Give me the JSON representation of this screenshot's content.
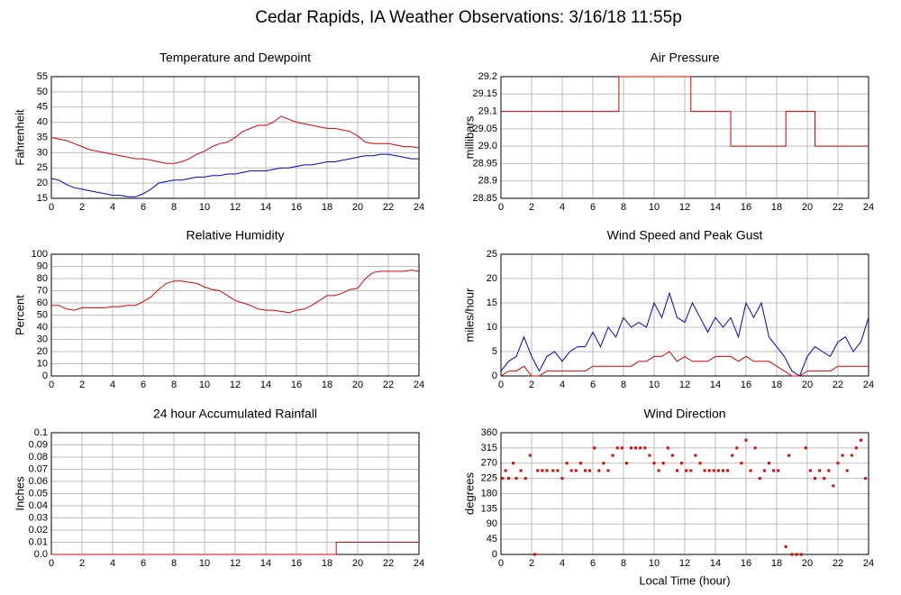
{
  "title": "Cedar Rapids, IA Weather Observations: 3/16/18 11:55p",
  "chart_data": [
    {
      "type": "line",
      "title": "Temperature and Dewpoint",
      "ylabel": "Fahrenheit",
      "x": [
        0,
        0.5,
        1,
        1.5,
        2,
        2.5,
        3,
        3.5,
        4,
        4.5,
        5,
        5.5,
        6,
        6.5,
        7,
        7.5,
        8,
        8.5,
        9,
        9.5,
        10,
        10.5,
        11,
        11.5,
        12,
        12.5,
        13,
        13.5,
        14,
        14.5,
        15,
        15.5,
        16,
        16.5,
        17,
        17.5,
        18,
        18.5,
        19,
        19.5,
        20,
        20.5,
        21,
        21.5,
        22,
        22.5,
        23,
        23.5,
        24
      ],
      "series": [
        {
          "color": "#e00000",
          "values": [
            35,
            34.5,
            34,
            33,
            32,
            31,
            30.5,
            30,
            29.5,
            29,
            28.5,
            28,
            28,
            27.5,
            27,
            26.5,
            26.5,
            27,
            28,
            29.5,
            30.5,
            32,
            33,
            33.5,
            35,
            37,
            38,
            39,
            39,
            40,
            42,
            41,
            40,
            39.5,
            39,
            38.5,
            38,
            38,
            37.5,
            37,
            35.5,
            33.5,
            33,
            33,
            33,
            32.5,
            32,
            32,
            31.5
          ]
        },
        {
          "color": "#0000d0",
          "values": [
            21.5,
            21,
            19.5,
            18.5,
            18,
            17.5,
            17,
            16.5,
            16,
            16,
            15.5,
            15.5,
            16.5,
            18,
            20,
            20.5,
            21,
            21,
            21.5,
            22,
            22,
            22.5,
            22.5,
            23,
            23,
            23.5,
            24,
            24,
            24,
            24.5,
            25,
            25,
            25.5,
            26,
            26,
            26.5,
            27,
            27,
            27.5,
            28,
            28.5,
            29,
            29,
            29.5,
            29.5,
            29,
            28.5,
            28,
            28
          ]
        }
      ],
      "xlim": [
        0,
        24
      ],
      "xticks": [
        0,
        2,
        4,
        6,
        8,
        10,
        12,
        14,
        16,
        18,
        20,
        22,
        24
      ],
      "ylim": [
        15,
        55
      ],
      "yticks": [
        15,
        20,
        25,
        30,
        35,
        40,
        45,
        50,
        55
      ],
      "grid": true
    },
    {
      "type": "line",
      "title": "Air Pressure",
      "ylabel": "millibars",
      "x": [
        0,
        7.7,
        7.7,
        12.4,
        12.4,
        15,
        15,
        18.6,
        18.6,
        20.5,
        20.5,
        24
      ],
      "series": [
        {
          "color": "#e00000",
          "values": [
            29.1,
            29.1,
            29.2,
            29.2,
            29.1,
            29.1,
            29,
            29,
            29.1,
            29.1,
            29,
            29
          ]
        }
      ],
      "xlim": [
        0,
        24
      ],
      "xticks": [
        0,
        2,
        4,
        6,
        8,
        10,
        12,
        14,
        16,
        18,
        20,
        22,
        24
      ],
      "ylim": [
        28.85,
        29.2
      ],
      "yticks": [
        28.85,
        28.9,
        28.95,
        {
          "value": 29,
          "label": "29.0"
        },
        29.05,
        29.1,
        29.15,
        29.2
      ],
      "grid": true
    },
    {
      "type": "line",
      "title": "Relative Humidity",
      "ylabel": "Percent",
      "x": [
        0,
        0.5,
        1,
        1.5,
        2,
        2.5,
        3,
        3.5,
        4,
        4.5,
        5,
        5.5,
        6,
        6.5,
        7,
        7.5,
        8,
        8.5,
        9,
        9.5,
        10,
        10.5,
        11,
        11.5,
        12,
        12.5,
        13,
        13.5,
        14,
        14.5,
        15,
        15.5,
        16,
        16.5,
        17,
        17.5,
        18,
        18.5,
        19,
        19.5,
        20,
        20.5,
        21,
        21.5,
        22,
        22.5,
        23,
        23.5,
        24
      ],
      "series": [
        {
          "color": "#e00000",
          "values": [
            58,
            58,
            55,
            54,
            56,
            56,
            56,
            56,
            57,
            57,
            58,
            58,
            61,
            65,
            71,
            76,
            78,
            78,
            77,
            76,
            73,
            71,
            70,
            66,
            62,
            60,
            58,
            55,
            54,
            54,
            53,
            52,
            54,
            55,
            58,
            62,
            66,
            66,
            68,
            71,
            72,
            80,
            85,
            86,
            86,
            86,
            86,
            87,
            86
          ]
        }
      ],
      "xlim": [
        0,
        24
      ],
      "xticks": [
        0,
        2,
        4,
        6,
        8,
        10,
        12,
        14,
        16,
        18,
        20,
        22,
        24
      ],
      "ylim": [
        0,
        100
      ],
      "yticks": [
        0,
        10,
        20,
        30,
        40,
        50,
        60,
        70,
        80,
        90,
        100
      ],
      "grid": true
    },
    {
      "type": "line",
      "title": "Wind Speed and Peak Gust",
      "ylabel": "miles/hour",
      "x": [
        0,
        0.5,
        1,
        1.5,
        2,
        2.5,
        3,
        3.5,
        4,
        4.5,
        5,
        5.5,
        6,
        6.5,
        7,
        7.5,
        8,
        8.5,
        9,
        9.5,
        10,
        10.5,
        11,
        11.5,
        12,
        12.5,
        13,
        13.5,
        14,
        14.5,
        15,
        15.5,
        16,
        16.5,
        17,
        17.5,
        18,
        18.5,
        19,
        19.5,
        20,
        20.5,
        21,
        21.5,
        22,
        22.5,
        23,
        23.5,
        24
      ],
      "series": [
        {
          "color": "#0000d0",
          "values": [
            1,
            3,
            4,
            8,
            4,
            1,
            4,
            5,
            3,
            5,
            6,
            6,
            9,
            6,
            10,
            8,
            12,
            10,
            11,
            10,
            15,
            12,
            17,
            12,
            11,
            15,
            12,
            9,
            12,
            10,
            12,
            8,
            15,
            12,
            15,
            8,
            6,
            4,
            1,
            0,
            4,
            6,
            5,
            4,
            7,
            8,
            5,
            7,
            12
          ]
        },
        {
          "color": "#e00000",
          "values": [
            0,
            1,
            1,
            2,
            0,
            0,
            1,
            1,
            1,
            1,
            1,
            1,
            2,
            2,
            2,
            2,
            2,
            2,
            3,
            3,
            4,
            4,
            5,
            3,
            4,
            3,
            3,
            3,
            4,
            4,
            4,
            3,
            4,
            3,
            3,
            3,
            2,
            1,
            0,
            0,
            1,
            1,
            1,
            1,
            2,
            2,
            2,
            2,
            2
          ]
        }
      ],
      "xlim": [
        0,
        24
      ],
      "xticks": [
        0,
        2,
        4,
        6,
        8,
        10,
        12,
        14,
        16,
        18,
        20,
        22,
        24
      ],
      "ylim": [
        0,
        25
      ],
      "yticks": [
        0,
        5,
        10,
        15,
        20,
        25
      ],
      "grid": true
    },
    {
      "type": "line",
      "title": "24 hour Accumulated Rainfall",
      "ylabel": "Inches",
      "x": [
        0,
        18.6,
        18.6,
        24
      ],
      "series": [
        {
          "color": "#e00000",
          "values": [
            0,
            0,
            0.01,
            0.01
          ]
        }
      ],
      "xlim": [
        0,
        24
      ],
      "xticks": [
        0,
        2,
        4,
        6,
        8,
        10,
        12,
        14,
        16,
        18,
        20,
        22,
        24
      ],
      "ylim": [
        0,
        0.1
      ],
      "yticks": [
        {
          "value": 0,
          "label": "0.0"
        },
        0.01,
        0.02,
        0.03,
        0.04,
        0.05,
        0.06,
        0.07,
        0.08,
        0.09,
        0.1
      ],
      "grid": true
    },
    {
      "type": "scatter",
      "title": "Wind Direction",
      "ylabel": "degrees",
      "xlabel": "Local Time (hour)",
      "x": [
        0.1,
        0.3,
        0.5,
        0.8,
        1.0,
        1.3,
        1.6,
        1.9,
        2.2,
        2.4,
        2.7,
        3.0,
        3.4,
        3.7,
        4.0,
        4.3,
        4.6,
        4.9,
        5.2,
        5.5,
        5.8,
        6.1,
        6.4,
        6.7,
        7.0,
        7.3,
        7.6,
        7.9,
        8.2,
        8.5,
        8.8,
        9.1,
        9.4,
        9.7,
        10.0,
        10.3,
        10.6,
        10.9,
        11.2,
        11.5,
        11.8,
        12.1,
        12.4,
        12.7,
        13.0,
        13.3,
        13.6,
        13.9,
        14.2,
        14.5,
        14.8,
        15.1,
        15.4,
        15.7,
        16.0,
        16.3,
        16.6,
        16.9,
        17.2,
        17.5,
        17.8,
        18.1,
        18.6,
        18.8,
        19.0,
        19.3,
        19.6,
        19.9,
        20.2,
        20.5,
        20.8,
        21.1,
        21.4,
        21.7,
        22.0,
        22.3,
        22.6,
        22.9,
        23.2,
        23.5,
        23.8
      ],
      "series": [
        {
          "color": "#e00000",
          "values": [
            225,
            248,
            225,
            270,
            225,
            248,
            225,
            293,
            0,
            248,
            248,
            248,
            248,
            248,
            225,
            270,
            248,
            248,
            270,
            248,
            248,
            315,
            248,
            270,
            248,
            293,
            315,
            315,
            270,
            315,
            315,
            315,
            315,
            293,
            270,
            248,
            270,
            315,
            293,
            248,
            270,
            248,
            248,
            293,
            270,
            248,
            248,
            248,
            248,
            248,
            248,
            293,
            315,
            270,
            338,
            248,
            315,
            225,
            248,
            270,
            248,
            248,
            23,
            293,
            0,
            0,
            0,
            315,
            248,
            225,
            248,
            225,
            248,
            203,
            270,
            293,
            248,
            293,
            315,
            338,
            225
          ]
        }
      ],
      "xlim": [
        0,
        24
      ],
      "xticks": [
        0,
        2,
        4,
        6,
        8,
        10,
        12,
        14,
        16,
        18,
        20,
        22,
        24
      ],
      "ylim": [
        0,
        360
      ],
      "yticks": [
        0,
        45,
        90,
        135,
        180,
        225,
        270,
        315,
        360
      ],
      "grid": true
    }
  ]
}
